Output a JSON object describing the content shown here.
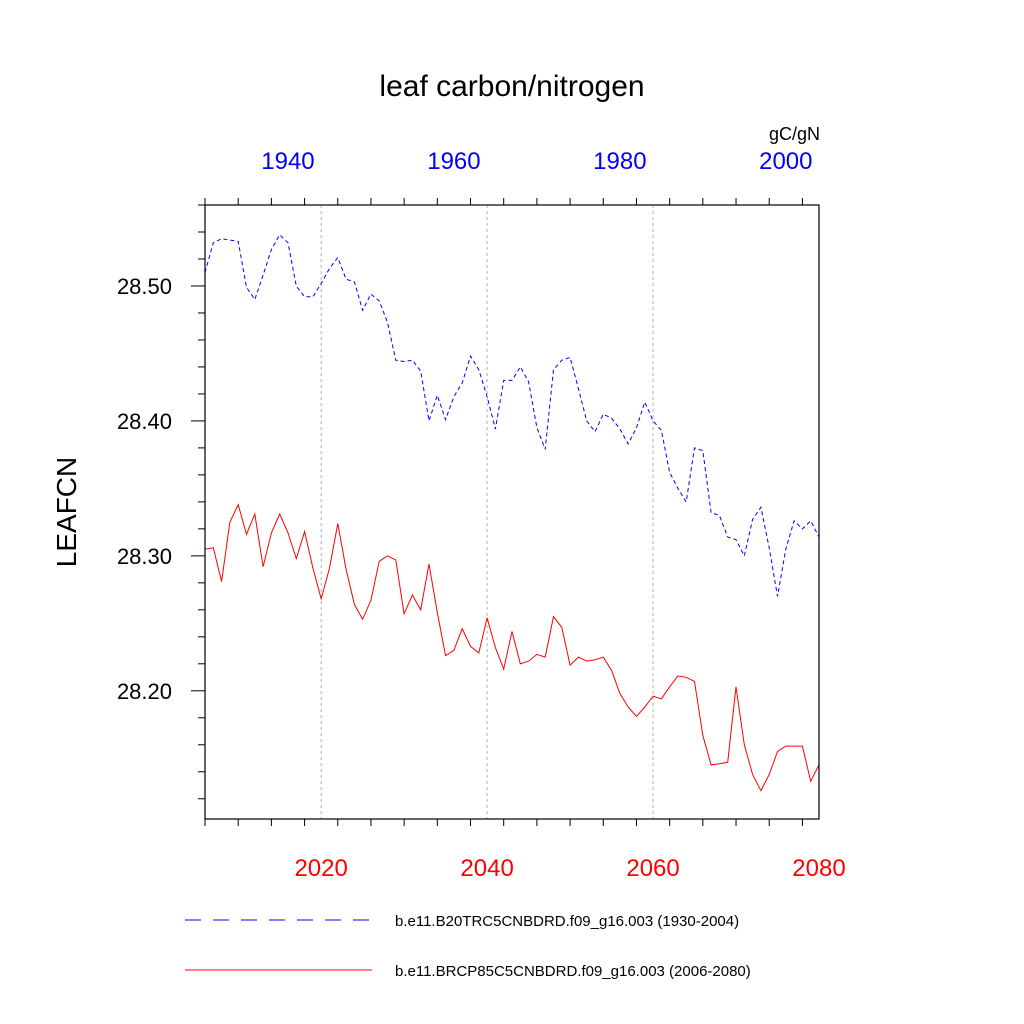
{
  "chart_data": {
    "type": "line",
    "title": "leaf carbon/nitrogen",
    "units": "gC/gN",
    "ylabel": "LEAFCN",
    "ylim": [
      28.105,
      28.56
    ],
    "yticks": [
      28.2,
      28.3,
      28.4,
      28.5
    ],
    "ytick_labels": [
      "28.20",
      "28.30",
      "28.40",
      "28.50"
    ],
    "ytick_minor_step": 0.02,
    "bottom_axis": {
      "range": [
        2006,
        2080
      ],
      "ticks": [
        2020,
        2040,
        2060,
        2080
      ],
      "tick_labels": [
        "2020",
        "2040",
        "2060",
        "2080"
      ],
      "minor_step": 4,
      "color": "#ff0000"
    },
    "top_axis": {
      "range": [
        1930,
        2004
      ],
      "ticks": [
        1940,
        1960,
        1980,
        2000
      ],
      "tick_labels": [
        "1940",
        "1960",
        "1980",
        "2000"
      ],
      "minor_step": 4,
      "color": "#0000ff"
    },
    "grid_x": [
      2020,
      2040,
      2060
    ],
    "series": [
      {
        "name": "b.e11.B20TRC5CNBDRD.f09_g16.003 (1930-2004)",
        "axis": "top",
        "color": "#0000ff",
        "dash": "dashed",
        "x": [
          1930,
          1931,
          1932,
          1933,
          1934,
          1935,
          1936,
          1937,
          1938,
          1939,
          1940,
          1941,
          1942,
          1943,
          1944,
          1945,
          1946,
          1947,
          1948,
          1949,
          1950,
          1951,
          1952,
          1953,
          1954,
          1955,
          1956,
          1957,
          1958,
          1959,
          1960,
          1961,
          1962,
          1963,
          1964,
          1965,
          1966,
          1967,
          1968,
          1969,
          1970,
          1971,
          1972,
          1973,
          1974,
          1975,
          1976,
          1977,
          1978,
          1979,
          1980,
          1981,
          1982,
          1983,
          1984,
          1985,
          1986,
          1987,
          1988,
          1989,
          1990,
          1991,
          1992,
          1993,
          1994,
          1995,
          1996,
          1997,
          1998,
          1999,
          2000,
          2001,
          2002,
          2003,
          2004
        ],
        "values": [
          28.51,
          28.532,
          28.535,
          28.534,
          28.533,
          28.499,
          28.49,
          28.508,
          28.527,
          28.538,
          28.532,
          28.5,
          28.492,
          28.492,
          28.502,
          28.513,
          28.521,
          28.505,
          28.503,
          28.482,
          28.494,
          28.489,
          28.473,
          28.445,
          28.444,
          28.445,
          28.437,
          28.4,
          28.419,
          28.401,
          28.418,
          28.428,
          28.448,
          28.438,
          28.418,
          28.394,
          28.43,
          28.43,
          28.44,
          28.429,
          28.395,
          28.379,
          28.438,
          28.445,
          28.447,
          28.424,
          28.4,
          28.392,
          28.405,
          28.402,
          28.394,
          28.383,
          28.395,
          28.414,
          28.4,
          28.393,
          28.362,
          28.35,
          28.34,
          28.38,
          28.378,
          28.332,
          28.33,
          28.314,
          28.312,
          28.3,
          28.327,
          28.336,
          28.306,
          28.27,
          28.305,
          28.326,
          28.32,
          28.326,
          28.314
        ]
      },
      {
        "name": "b.e11.BRCP85C5CNBDRD.f09_g16.003 (2006-2080)",
        "axis": "bottom",
        "color": "#ff0000",
        "dash": "solid",
        "x": [
          2006,
          2007,
          2008,
          2009,
          2010,
          2011,
          2012,
          2013,
          2014,
          2015,
          2016,
          2017,
          2018,
          2019,
          2020,
          2021,
          2022,
          2023,
          2024,
          2025,
          2026,
          2027,
          2028,
          2029,
          2030,
          2031,
          2032,
          2033,
          2034,
          2035,
          2036,
          2037,
          2038,
          2039,
          2040,
          2041,
          2042,
          2043,
          2044,
          2045,
          2046,
          2047,
          2048,
          2049,
          2050,
          2051,
          2052,
          2053,
          2054,
          2055,
          2056,
          2057,
          2058,
          2059,
          2060,
          2061,
          2062,
          2063,
          2064,
          2065,
          2066,
          2067,
          2068,
          2069,
          2070,
          2071,
          2072,
          2073,
          2074,
          2075,
          2076,
          2077,
          2078,
          2079,
          2080
        ],
        "values": [
          28.305,
          28.306,
          28.281,
          28.325,
          28.338,
          28.316,
          28.331,
          28.292,
          28.317,
          28.331,
          28.317,
          28.298,
          28.318,
          28.291,
          28.268,
          28.291,
          28.324,
          28.29,
          28.264,
          28.253,
          28.267,
          28.296,
          28.3,
          28.297,
          28.257,
          28.271,
          28.26,
          28.294,
          28.258,
          28.226,
          28.23,
          28.246,
          28.233,
          28.228,
          28.254,
          28.232,
          28.216,
          28.244,
          28.22,
          28.222,
          28.227,
          28.225,
          28.255,
          28.247,
          28.219,
          28.225,
          28.222,
          28.223,
          28.225,
          28.215,
          28.198,
          28.188,
          28.181,
          28.188,
          28.196,
          28.194,
          28.203,
          28.211,
          28.21,
          28.207,
          28.167,
          28.145,
          28.146,
          28.147,
          28.203,
          28.16,
          28.138,
          28.126,
          28.138,
          28.155,
          28.159,
          28.159,
          28.159,
          28.133,
          28.145
        ]
      }
    ],
    "legend_position": "bottom"
  }
}
